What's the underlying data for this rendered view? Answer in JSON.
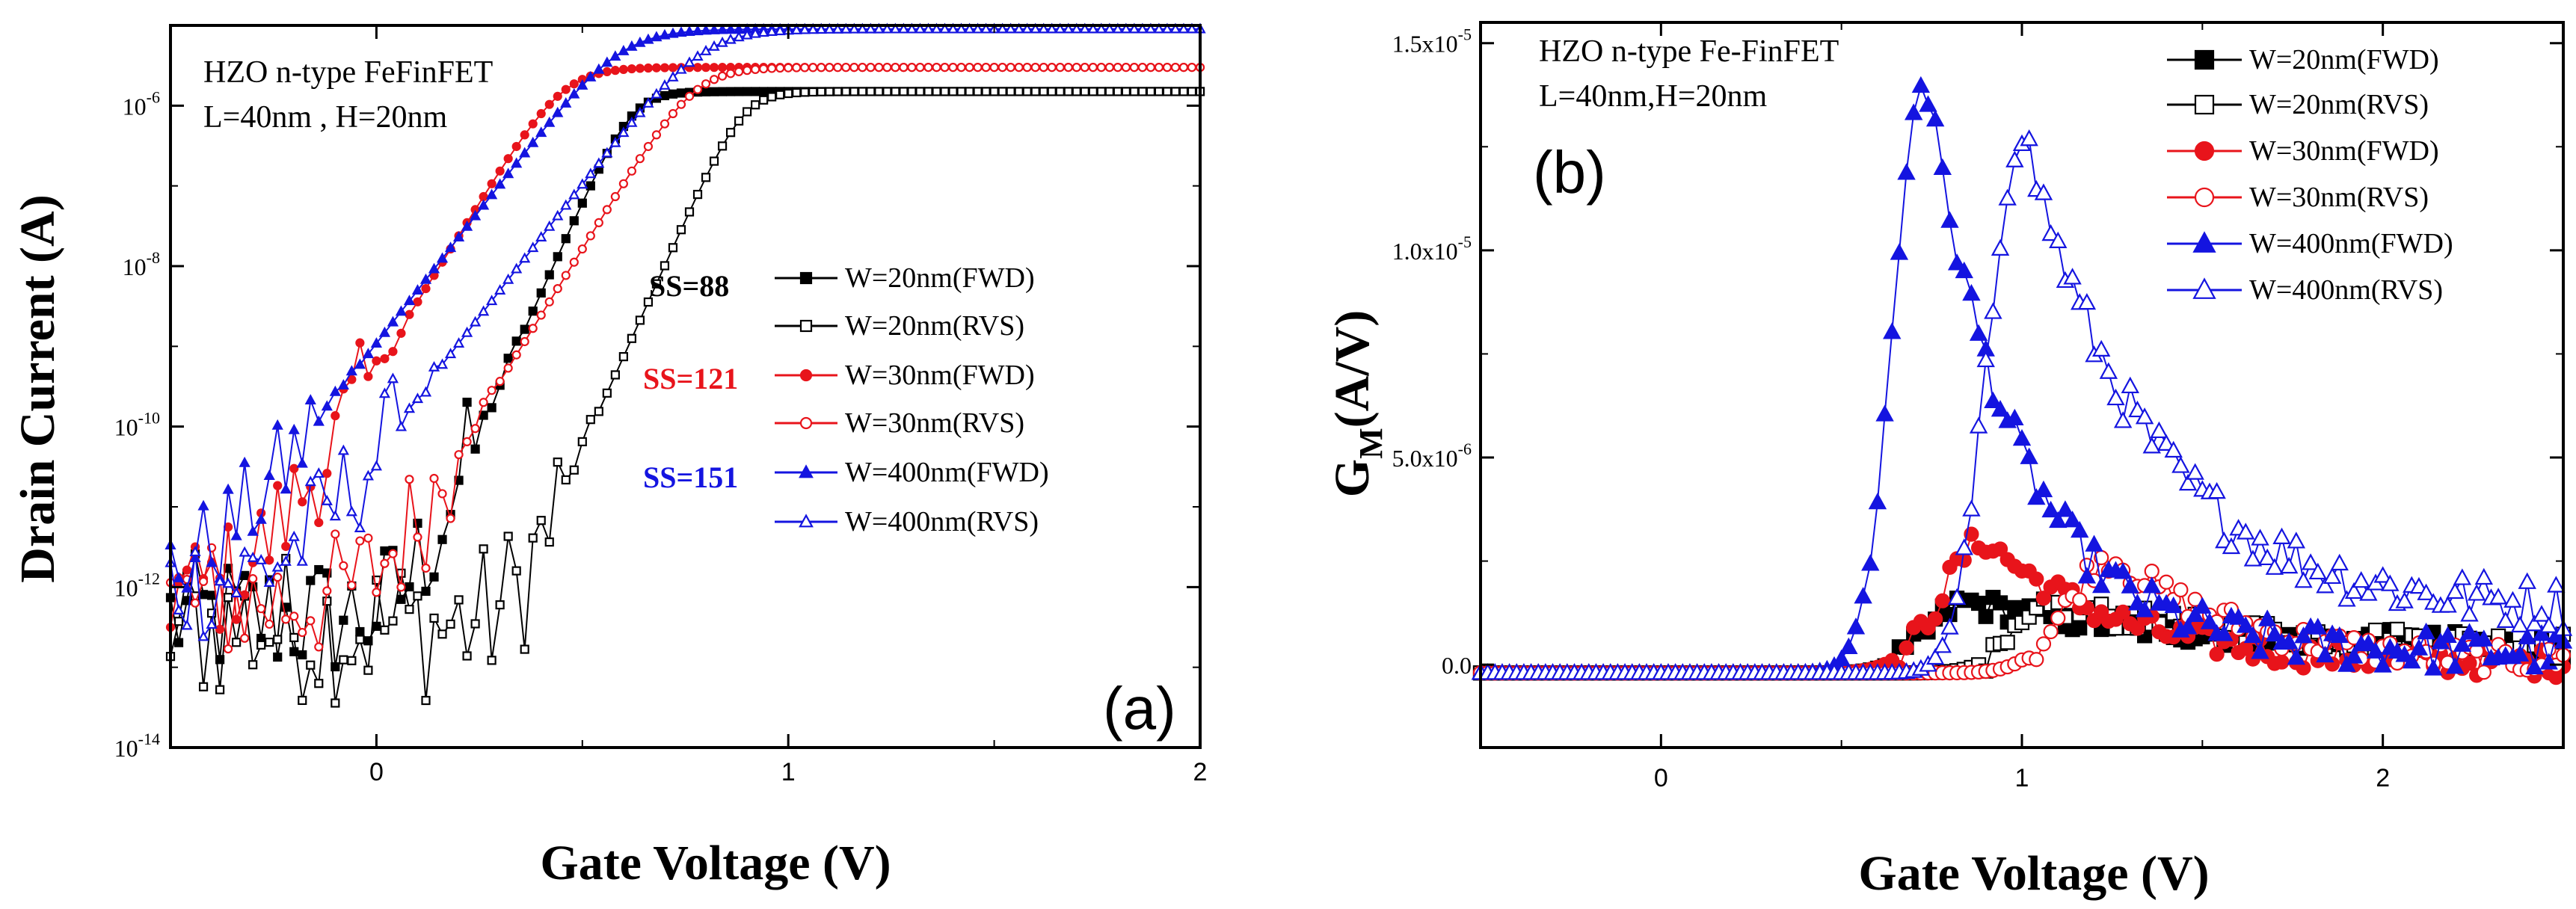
{
  "chart_data": [
    {
      "type": "scatter",
      "panel_label": "(a)",
      "title": "",
      "xlabel": "Gate Voltage (V)",
      "ylabel": "Drain Current (A)",
      "yscale": "log",
      "xlim": [
        -0.5,
        2.0
      ],
      "ylim_exp": [
        -14,
        -5
      ],
      "x_ticks": [
        "0",
        "1",
        "2"
      ],
      "y_tick_base": "10",
      "y_tick_exps": [
        "-14",
        "-12",
        "-10",
        "-8",
        "-6"
      ],
      "annotation": [
        "HZO n-type FeFinFET",
        "L=40nm , H=20nm"
      ],
      "ss_labels": [
        {
          "text": "SS=88",
          "color": "#000000"
        },
        {
          "text": "SS=121",
          "color": "#e8141b"
        },
        {
          "text": "SS=151",
          "color": "#1414e0"
        }
      ],
      "legend_placement": "center-right",
      "series": [
        {
          "name": "W=20nm(FWD)",
          "color": "#000000",
          "marker": "square",
          "filled": true,
          "vt": 0.48,
          "ss": 0.088,
          "sat": 1.5e-06,
          "vlow": 0.25,
          "floor_exp": -12.3,
          "noise": 1.0
        },
        {
          "name": "W=20nm(RVS)",
          "color": "#000000",
          "marker": "square",
          "filled": false,
          "vt": 0.75,
          "ss": 0.088,
          "sat": 1.5e-06,
          "vlow": 0.45,
          "floor_exp": -12.4,
          "noise": 1.2
        },
        {
          "name": "W=30nm(FWD)",
          "color": "#e8141b",
          "marker": "circle",
          "filled": true,
          "vt": 0.26,
          "ss": 0.121,
          "sat": 3e-06,
          "vlow": 0.0,
          "floor_exp": -12.0,
          "noise": 0.9
        },
        {
          "name": "W=30nm(RVS)",
          "color": "#e8141b",
          "marker": "circle",
          "filled": false,
          "vt": 0.58,
          "ss": 0.121,
          "sat": 3e-06,
          "vlow": 0.2,
          "floor_exp": -12.1,
          "noise": 1.0
        },
        {
          "name": "W=400nm(FWD)",
          "color": "#1414e0",
          "marker": "triangle",
          "filled": true,
          "vt": 0.35,
          "ss": 0.151,
          "sat": 9e-06,
          "vlow": -0.15,
          "floor_exp": -11.8,
          "noise": 0.8
        },
        {
          "name": "W=400nm(RVS)",
          "color": "#1414e0",
          "marker": "triangle",
          "filled": false,
          "vt": 0.55,
          "ss": 0.151,
          "sat": 9e-06,
          "vlow": 0.05,
          "floor_exp": -11.9,
          "noise": 0.9
        }
      ]
    },
    {
      "type": "scatter",
      "panel_label": "(b)",
      "title": "",
      "xlabel": "Gate Voltage (V)",
      "ylabel_main": "G",
      "ylabel_sub": "M",
      "ylabel_rest": "(A/V)",
      "xlim": [
        -0.5,
        2.5
      ],
      "ylim": [
        -2e-06,
        1.55e-05
      ],
      "x_ticks": [
        "0",
        "1",
        "2"
      ],
      "y_ticks": [
        {
          "mant": "0.0",
          "exp": ""
        },
        {
          "mant": "5.0x10",
          "exp": "-6"
        },
        {
          "mant": "1.0x10",
          "exp": "-5"
        },
        {
          "mant": "1.5x10",
          "exp": "-5"
        }
      ],
      "annotation": [
        "HZO n-type Fe-FinFET",
        "L=40nm,H=20nm"
      ],
      "legend_placement": "top-right",
      "series": [
        {
          "name": "W=20nm(FWD)",
          "color": "#000000",
          "marker": "square",
          "filled": true,
          "peak_v": 0.85,
          "peak": 1.7e-06,
          "rise_w": 0.18,
          "decay": 1.3,
          "tail": 6e-07,
          "noise": 3e-07
        },
        {
          "name": "W=20nm(RVS)",
          "color": "#000000",
          "marker": "square",
          "filled": false,
          "peak_v": 1.1,
          "peak": 1.6e-06,
          "rise_w": 0.18,
          "decay": 1.3,
          "tail": 6e-07,
          "noise": 3e-07
        },
        {
          "name": "W=30nm(FWD)",
          "color": "#e8141b",
          "marker": "circle",
          "filled": true,
          "peak_v": 0.9,
          "peak": 3.2e-06,
          "rise_w": 0.2,
          "decay": 0.8,
          "tail": 2e-07,
          "noise": 3.5e-07
        },
        {
          "name": "W=30nm(RVS)",
          "color": "#e8141b",
          "marker": "circle",
          "filled": false,
          "peak_v": 1.25,
          "peak": 2.8e-06,
          "rise_w": 0.2,
          "decay": 0.8,
          "tail": 2e-07,
          "noise": 3.5e-07
        },
        {
          "name": "W=400nm(FWD)",
          "color": "#1414e0",
          "marker": "triangle",
          "filled": true,
          "peak_v": 0.73,
          "peak": 1.45e-05,
          "rise_w": 0.14,
          "decay": 0.55,
          "tail": 5e-07,
          "noise": 5e-07
        },
        {
          "name": "W=400nm(RVS)",
          "color": "#1414e0",
          "marker": "triangle",
          "filled": false,
          "peak_v": 1.0,
          "peak": 1.32e-05,
          "rise_w": 0.15,
          "decay": 0.75,
          "tail": 1.5e-06,
          "noise": 6e-07
        }
      ]
    }
  ]
}
